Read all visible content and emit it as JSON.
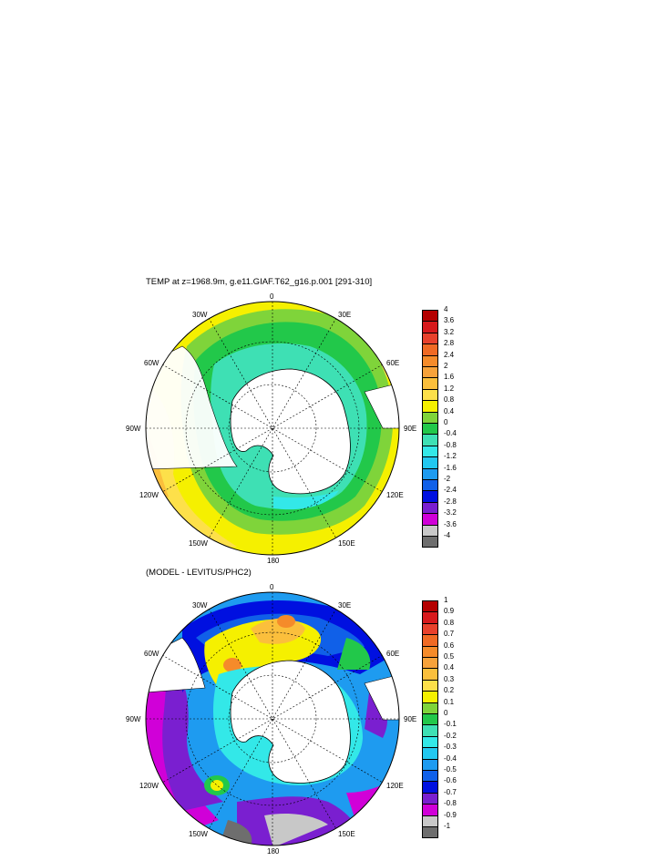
{
  "panels": [
    {
      "title": "TEMP at z=1968.9m, g.e11.GIAF.T62_g16.p.001 [291-310]",
      "lon_labels": [
        "0",
        "30E",
        "60E",
        "90E",
        "120E",
        "150E",
        "180",
        "150W",
        "120W",
        "90W",
        "60W",
        "30W"
      ],
      "colorbar": {
        "labels": [
          "4",
          "3.6",
          "3.2",
          "2.8",
          "2.4",
          "2",
          "1.6",
          "1.2",
          "0.8",
          "0.4",
          "0",
          "-0.4",
          "-0.8",
          "-1.2",
          "-1.6",
          "-2",
          "-2.4",
          "-2.8",
          "-3.2",
          "-3.6",
          "-4"
        ],
        "colors": [
          "#b40000",
          "#d7191c",
          "#e8412c",
          "#f06a24",
          "#f58b2a",
          "#f7a23a",
          "#fbbf3c",
          "#fde04a",
          "#f5f000",
          "#7fd43a",
          "#22c84a",
          "#3ee0b4",
          "#33e8e8",
          "#22c8f0",
          "#1e9bf0",
          "#1060e8",
          "#0010e0",
          "#7a1fd0",
          "#d000d8",
          "#c8c8c8",
          "#6e6e6e"
        ]
      }
    },
    {
      "title": "(MODEL - LEVITUS/PHC2)",
      "lon_labels": [
        "0",
        "30E",
        "60E",
        "90E",
        "120E",
        "150E",
        "180",
        "150W",
        "120W",
        "90W",
        "60W",
        "30W"
      ],
      "colorbar": {
        "labels": [
          "1",
          "0.9",
          "0.8",
          "0.7",
          "0.6",
          "0.5",
          "0.4",
          "0.3",
          "0.2",
          "0.1",
          "0",
          "-0.1",
          "-0.2",
          "-0.3",
          "-0.4",
          "-0.5",
          "-0.6",
          "-0.7",
          "-0.8",
          "-0.9",
          "-1"
        ],
        "colors": [
          "#b40000",
          "#d7191c",
          "#e8412c",
          "#f06a24",
          "#f58b2a",
          "#f7a23a",
          "#fbbf3c",
          "#fde04a",
          "#f5f000",
          "#7fd43a",
          "#22c84a",
          "#3ee0b4",
          "#33e8e8",
          "#22c8f0",
          "#1e9bf0",
          "#1060e8",
          "#0010e0",
          "#7a1fd0",
          "#d000d8",
          "#c8c8c8",
          "#6e6e6e"
        ]
      }
    }
  ]
}
